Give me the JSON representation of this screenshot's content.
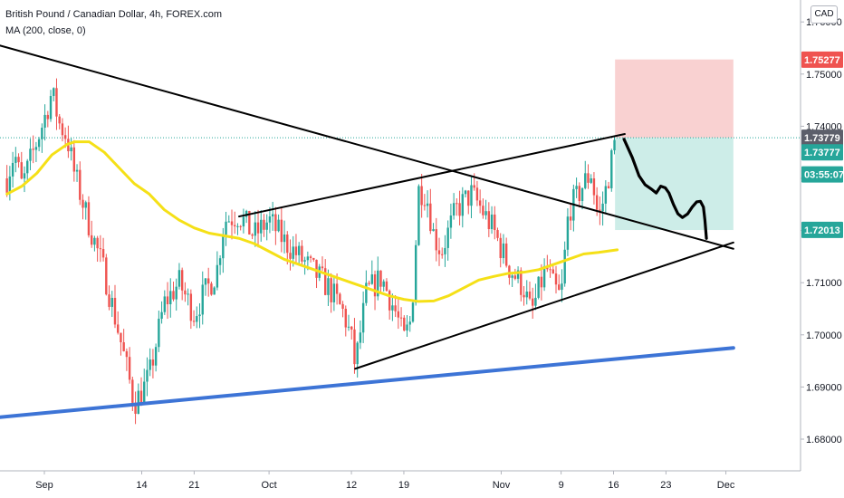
{
  "legend": {
    "title": "British Pound / Canadian Dollar, 4h, FOREX.com",
    "indicator": "MA (200, close, 0)"
  },
  "currency_badge": "CAD",
  "colors": {
    "up": "#26a69a",
    "down": "#ef5350",
    "ma": "#f5e017",
    "trendline": "#000000",
    "support": "#3d74d6",
    "stop_zone": "#f8c9c9",
    "target_zone": "#c8ebe5",
    "current_price": "#5c5f6b",
    "red_label": "#ef5350"
  },
  "chart_data": {
    "type": "candlestick",
    "title": "British Pound / Canadian Dollar, 4h, FOREX.com",
    "ylim": [
      1.676,
      1.762
    ],
    "y_ticks": [
      "1.68000",
      "1.69000",
      "1.70000",
      "1.71000",
      "1.72000",
      "1.73000",
      "1.74000",
      "1.75000",
      "1.76000"
    ],
    "x_ticks": [
      {
        "label": "Sep",
        "day": 0
      },
      {
        "label": "14",
        "day": 13
      },
      {
        "label": "21",
        "day": 20
      },
      {
        "label": "Oct",
        "day": 30
      },
      {
        "label": "12",
        "day": 41
      },
      {
        "label": "19",
        "day": 48
      },
      {
        "label": "Nov",
        "day": 61
      },
      {
        "label": "9",
        "day": 69
      },
      {
        "label": "16",
        "day": 76
      },
      {
        "label": "23",
        "day": 83
      },
      {
        "label": "Dec",
        "day": 91
      }
    ],
    "close_anchors": [
      [
        -5,
        1.73
      ],
      [
        -4,
        1.735
      ],
      [
        -3,
        1.7285
      ],
      [
        0,
        1.7415
      ],
      [
        1,
        1.7465
      ],
      [
        2,
        1.7405
      ],
      [
        3,
        1.738
      ],
      [
        4,
        1.731
      ],
      [
        6,
        1.721
      ],
      [
        8,
        1.712
      ],
      [
        10,
        1.7
      ],
      [
        12,
        1.687
      ],
      [
        13,
        1.689
      ],
      [
        14,
        1.692
      ],
      [
        16,
        1.706
      ],
      [
        18,
        1.71
      ],
      [
        20,
        1.704
      ],
      [
        21,
        1.707
      ],
      [
        23,
        1.712
      ],
      [
        24,
        1.722
      ],
      [
        26,
        1.723
      ],
      [
        28,
        1.719
      ],
      [
        30,
        1.722
      ],
      [
        32,
        1.718
      ],
      [
        34,
        1.715
      ],
      [
        36,
        1.712
      ],
      [
        38,
        1.709
      ],
      [
        40,
        1.704
      ],
      [
        41,
        1.699
      ],
      [
        41.5,
        1.694
      ],
      [
        43,
        1.708
      ],
      [
        45,
        1.711
      ],
      [
        47,
        1.704
      ],
      [
        48,
        1.699
      ],
      [
        49,
        1.703
      ],
      [
        50,
        1.728
      ],
      [
        51,
        1.727
      ],
      [
        52,
        1.719
      ],
      [
        53,
        1.716
      ],
      [
        55,
        1.724
      ],
      [
        57,
        1.727
      ],
      [
        58,
        1.725
      ],
      [
        60,
        1.72
      ],
      [
        62,
        1.713
      ],
      [
        64,
        1.709
      ],
      [
        65,
        1.704
      ],
      [
        67,
        1.713
      ],
      [
        68,
        1.709
      ],
      [
        69,
        1.707
      ],
      [
        70,
        1.724
      ],
      [
        71,
        1.726
      ],
      [
        72,
        1.729
      ],
      [
        73,
        1.731
      ],
      [
        74,
        1.722
      ],
      [
        75,
        1.728
      ],
      [
        76.3,
        1.7378
      ]
    ],
    "moving_average": {
      "name": "MA (200, close, 0)",
      "points": [
        [
          -5,
          1.727
        ],
        [
          -3,
          1.7285
        ],
        [
          -1,
          1.731
        ],
        [
          1,
          1.7345
        ],
        [
          3,
          1.7365
        ],
        [
          4,
          1.737
        ],
        [
          6,
          1.737
        ],
        [
          8,
          1.735
        ],
        [
          10,
          1.732
        ],
        [
          12,
          1.729
        ],
        [
          14,
          1.727
        ],
        [
          16,
          1.724
        ],
        [
          18,
          1.722
        ],
        [
          20,
          1.7205
        ],
        [
          22,
          1.7195
        ],
        [
          24,
          1.719
        ],
        [
          26,
          1.7185
        ],
        [
          28,
          1.7175
        ],
        [
          30,
          1.716
        ],
        [
          32,
          1.7145
        ],
        [
          34,
          1.7135
        ],
        [
          36,
          1.7125
        ],
        [
          38,
          1.7115
        ],
        [
          40,
          1.7105
        ],
        [
          42,
          1.7095
        ],
        [
          44,
          1.7085
        ],
        [
          46,
          1.7075
        ],
        [
          48,
          1.7068
        ],
        [
          50,
          1.7064
        ],
        [
          52,
          1.7065
        ],
        [
          54,
          1.7075
        ],
        [
          56,
          1.709
        ],
        [
          58,
          1.7105
        ],
        [
          60,
          1.7112
        ],
        [
          62,
          1.7118
        ],
        [
          64,
          1.712
        ],
        [
          66,
          1.7125
        ],
        [
          68,
          1.7135
        ],
        [
          70,
          1.7145
        ],
        [
          72,
          1.7155
        ],
        [
          74,
          1.7158
        ],
        [
          76.5,
          1.7163
        ]
      ]
    },
    "annotations": {
      "upper_trendline": [
        [
          -6,
          1.7555
        ],
        [
          92,
          1.7165
        ]
      ],
      "support_line": [
        [
          -6,
          1.6842
        ],
        [
          92,
          1.6975
        ]
      ],
      "channel_upper": [
        [
          26,
          1.7227
        ],
        [
          77.5,
          1.7385
        ]
      ],
      "channel_lower": [
        [
          41.5,
          1.6935
        ],
        [
          92,
          1.7177
        ]
      ],
      "zones": {
        "x_range": [
          76.2,
          92
        ],
        "stop": [
          1.7378,
          1.7528
        ],
        "target": [
          1.7201,
          1.7378
        ]
      },
      "projection": [
        [
          77.4,
          1.7375
        ],
        [
          78.5,
          1.734
        ],
        [
          79.4,
          1.7305
        ],
        [
          80.2,
          1.7288
        ],
        [
          81.0,
          1.728
        ],
        [
          81.7,
          1.7272
        ],
        [
          82.3,
          1.7285
        ],
        [
          82.9,
          1.7282
        ],
        [
          83.4,
          1.7272
        ],
        [
          84.0,
          1.725
        ],
        [
          84.6,
          1.7232
        ],
        [
          85.2,
          1.7225
        ],
        [
          85.9,
          1.7232
        ],
        [
          86.5,
          1.7245
        ],
        [
          87.1,
          1.7255
        ],
        [
          87.6,
          1.7256
        ],
        [
          88.0,
          1.7245
        ],
        [
          88.2,
          1.722
        ],
        [
          88.4,
          1.7185
        ]
      ]
    },
    "price_labels": [
      {
        "value": 1.75277,
        "text": "1.75277",
        "style": "red"
      },
      {
        "value": 1.73779,
        "text": "1.73779",
        "style": "dark"
      },
      {
        "value": 1.73777,
        "text": "1.73777",
        "style": "teal"
      },
      {
        "value": 1.73458,
        "text": "03:55:07",
        "style": "teal"
      },
      {
        "value": 1.72013,
        "text": "1.72013",
        "style": "teal"
      }
    ]
  }
}
